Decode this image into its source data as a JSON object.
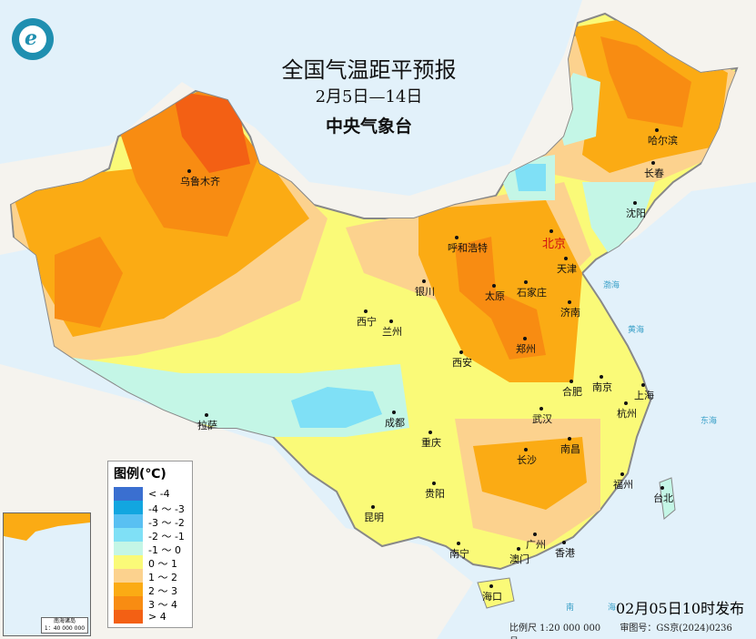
{
  "header": {
    "title": "全国气温距平预报",
    "period": "2月5日—14日",
    "issuer": "中央气象台"
  },
  "legend": {
    "title": "图例(℃)",
    "items": [
      {
        "label": "< -4",
        "color": "#3a6fd0"
      },
      {
        "label": "-4 ～ -3",
        "color": "#12a6e0"
      },
      {
        "label": "-3 ～ -2",
        "color": "#59c0f2"
      },
      {
        "label": "-2 ～ -1",
        "color": "#7fe0f6"
      },
      {
        "label": "-1 ～ 0",
        "color": "#c4f6e6"
      },
      {
        "label": "0 ～ 1",
        "color": "#fafa78"
      },
      {
        "label": "1 ～ 2",
        "color": "#fcd28e"
      },
      {
        "label": "2 ～ 3",
        "color": "#fbab14"
      },
      {
        "label": "3 ～ 4",
        "color": "#f88c12"
      },
      {
        "label": "> 4",
        "color": "#f36014"
      }
    ]
  },
  "cities": [
    {
      "name": "乌鲁木齐"
    },
    {
      "name": "哈尔滨"
    },
    {
      "name": "长春"
    },
    {
      "name": "沈阳"
    },
    {
      "name": "北京"
    },
    {
      "name": "天津"
    },
    {
      "name": "呼和浩特"
    },
    {
      "name": "银川"
    },
    {
      "name": "太原"
    },
    {
      "name": "石家庄"
    },
    {
      "name": "济南"
    },
    {
      "name": "西宁"
    },
    {
      "name": "兰州"
    },
    {
      "name": "郑州"
    },
    {
      "name": "西安"
    },
    {
      "name": "合肥"
    },
    {
      "name": "南京"
    },
    {
      "name": "上海"
    },
    {
      "name": "杭州"
    },
    {
      "name": "拉萨"
    },
    {
      "name": "成都"
    },
    {
      "name": "武汉"
    },
    {
      "name": "重庆"
    },
    {
      "name": "长沙"
    },
    {
      "name": "南昌"
    },
    {
      "name": "贵阳"
    },
    {
      "name": "福州"
    },
    {
      "name": "台北"
    },
    {
      "name": "昆明"
    },
    {
      "name": "南宁"
    },
    {
      "name": "广州"
    },
    {
      "name": "澳门"
    },
    {
      "name": "香港"
    },
    {
      "name": "海口"
    }
  ],
  "seas": {
    "bohai": "渤海",
    "huanghai": "黄海",
    "donghai": "东海",
    "nanhai": "南",
    "nanhai2": "海"
  },
  "inset": {
    "title": "南海诸岛",
    "scale": "1：40 000 000"
  },
  "footer": {
    "issued": "02月05日10时发布",
    "scale": "比例尺 1:20 000 000",
    "approval": "审图号：GS京(2024)0236号"
  }
}
